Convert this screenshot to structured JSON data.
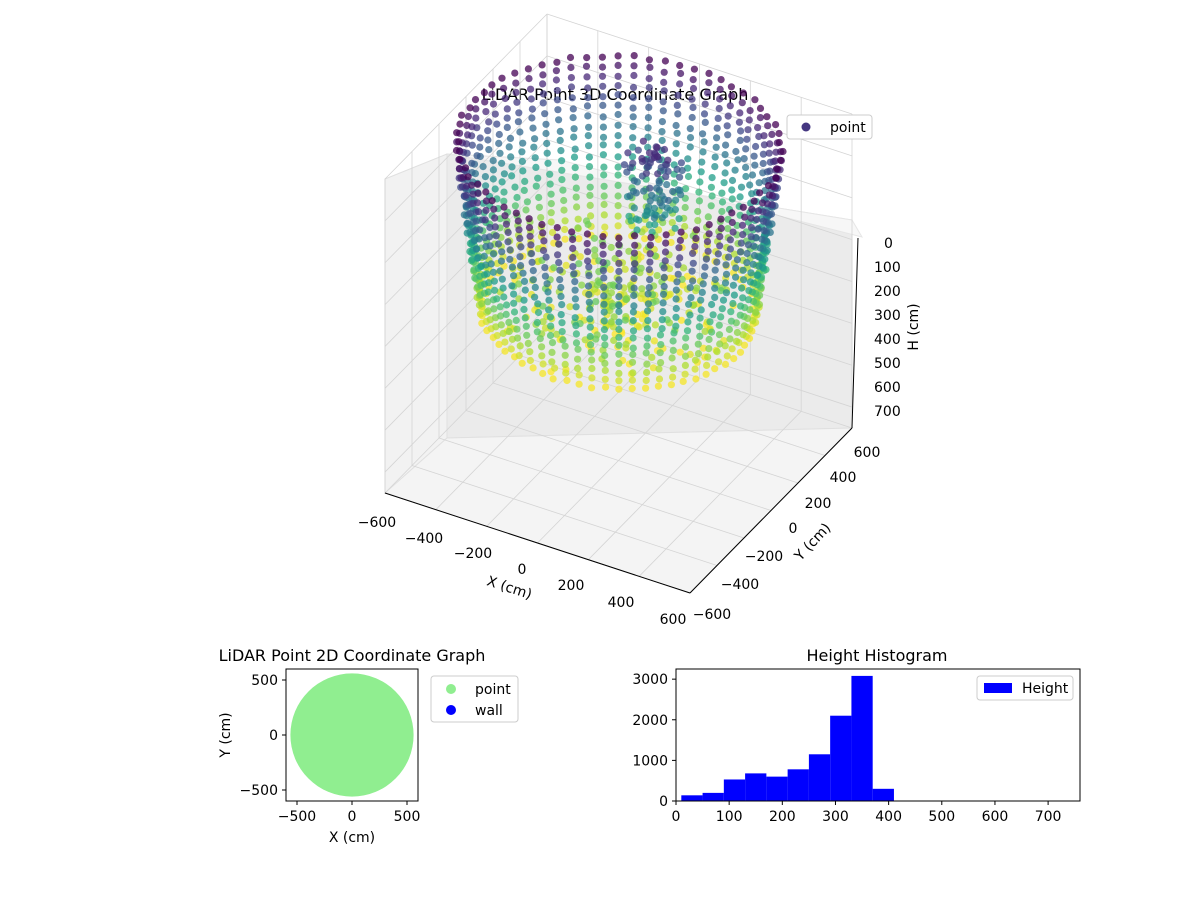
{
  "chart_data": [
    {
      "type": "scatter",
      "title": "LiDAR Point 3D Coordinate Graph",
      "xlabel": "X (cm)",
      "ylabel": "Y (cm)",
      "zlabel": "H (cm)",
      "xlim": [
        -600,
        600
      ],
      "ylim": [
        -600,
        600
      ],
      "zlim": [
        0,
        750
      ],
      "z_inverted": true,
      "xticks": [
        "−600",
        "−400",
        "−200",
        "0",
        "200",
        "400",
        "600"
      ],
      "yticks": [
        "−600",
        "−400",
        "−200",
        "0",
        "200",
        "400",
        "600"
      ],
      "zticks": [
        "0",
        "100",
        "200",
        "300",
        "400",
        "500",
        "600",
        "700"
      ],
      "grid": true,
      "colormap": "viridis",
      "legend": {
        "position": "top-right",
        "entries": [
          {
            "label": "point",
            "color": "#453781"
          }
        ]
      },
      "shape": "bowl: ring of vertical point columns, radius ~550 cm, heights 0-400 cm, denser floor cluster near center"
    },
    {
      "type": "scatter",
      "title": "LiDAR Point 2D Coordinate Graph",
      "xlabel": "X (cm)",
      "ylabel": "Y (cm)",
      "xlim": [
        -600,
        600
      ],
      "ylim": [
        -600,
        600
      ],
      "xticks": [
        "−500",
        "0",
        "500"
      ],
      "yticks": [
        "−500",
        "0",
        "500"
      ],
      "grid": false,
      "legend": {
        "position": "outside-right",
        "entries": [
          {
            "label": "point",
            "color": "#90ee90"
          },
          {
            "label": "wall",
            "color": "#0000ff"
          }
        ]
      },
      "series": [
        {
          "name": "point",
          "color": "#90ee90",
          "region": "disk",
          "center": [
            0,
            0
          ],
          "radius": 560
        }
      ]
    },
    {
      "type": "bar",
      "title": "Height Histogram",
      "xlabel": "",
      "ylabel": "",
      "xlim": [
        0,
        760
      ],
      "ylim": [
        0,
        3250
      ],
      "xticks": [
        "0",
        "100",
        "200",
        "300",
        "400",
        "500",
        "600",
        "700"
      ],
      "yticks": [
        "0",
        "1000",
        "2000",
        "3000"
      ],
      "color": "#0000ff",
      "legend": {
        "position": "top-right",
        "entries": [
          {
            "label": "Height",
            "color": "#0000ff"
          }
        ]
      },
      "bin_edges": [
        10,
        50,
        90,
        130,
        170,
        210,
        250,
        290,
        330,
        370,
        410
      ],
      "values": [
        140,
        200,
        530,
        680,
        600,
        780,
        1150,
        2100,
        3080,
        300
      ]
    }
  ]
}
